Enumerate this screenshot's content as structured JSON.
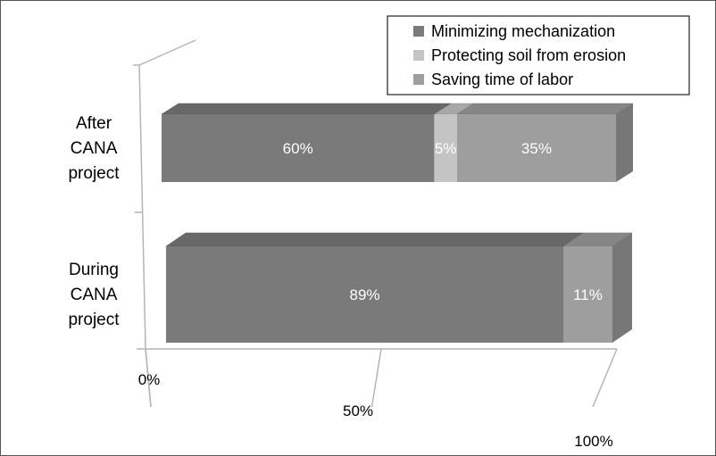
{
  "chart_data": {
    "type": "bar",
    "orientation": "horizontal",
    "stacked": "100%",
    "three_d": true,
    "categories": [
      [
        "After",
        "CANA",
        "project"
      ],
      [
        "During",
        "CANA",
        "project"
      ]
    ],
    "series": [
      {
        "name": "Minimizing mechanization",
        "values": [
          60,
          89
        ],
        "labels": [
          "60%",
          "89%"
        ]
      },
      {
        "name": "Protecting   soil from erosion",
        "values": [
          5,
          0
        ],
        "labels": [
          "5%",
          ""
        ]
      },
      {
        "name": "Saving time of labor",
        "values": [
          35,
          11
        ],
        "labels": [
          "35%",
          "11%"
        ]
      }
    ],
    "xlim": [
      0,
      100
    ],
    "x_ticks": [
      "0%",
      "50%",
      "100%"
    ],
    "legend_position": "top-right",
    "grid": false,
    "title": "",
    "xlabel": "",
    "ylabel": ""
  },
  "colors": {
    "series": [
      "#7a7a7a",
      "#c4c4c4",
      "#9e9e9e"
    ],
    "axis": "#b5b5b5",
    "border": "#555555"
  }
}
